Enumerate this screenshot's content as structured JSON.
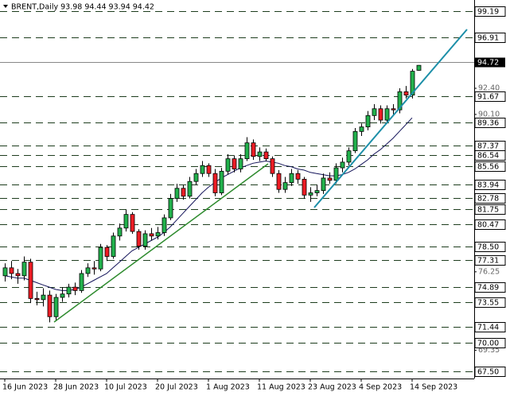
{
  "chart_data": {
    "type": "candlestick",
    "title": "BRENT,Daily  93.98 94.44 93.94 94.42",
    "categories": [
      "16 Jun 2023",
      null,
      null,
      null,
      null,
      null,
      null,
      null,
      "28 Jun 2023",
      null,
      null,
      null,
      null,
      null,
      null,
      null,
      "10 Jul 2023",
      null,
      null,
      null,
      null,
      null,
      null,
      null,
      "20 Jul 2023",
      null,
      null,
      null,
      null,
      null,
      null,
      null,
      "1 Aug 2023",
      null,
      null,
      null,
      null,
      null,
      null,
      null,
      "11 Aug 2023",
      null,
      null,
      null,
      null,
      null,
      null,
      null,
      "23 Aug 2023",
      null,
      null,
      null,
      null,
      null,
      null,
      null,
      "4 Sep 2023",
      null,
      null,
      null,
      null,
      null,
      null,
      null,
      "14 Sep 2023",
      null
    ],
    "open": [
      75.9,
      76.6,
      76.1,
      75.9,
      77.1,
      73.9,
      73.8,
      74.2,
      72.3,
      74.0,
      74.3,
      74.9,
      74.6,
      76.1,
      76.6,
      76.5,
      78.4,
      77.6,
      79.4,
      80.1,
      81.3,
      79.8,
      78.5,
      79.6,
      79.4,
      79.7,
      81.0,
      82.7,
      83.6,
      82.9,
      84.2,
      84.9,
      85.6,
      84.9,
      83.2,
      85.1,
      86.2,
      85.3,
      86.2,
      87.6,
      86.4,
      86.8,
      86.2,
      84.9,
      83.5,
      84.1,
      84.9,
      84.4,
      83.0,
      83.2,
      83.4,
      84.5,
      84.3,
      85.4,
      85.9,
      86.9,
      88.6,
      89.0,
      90.0,
      90.6,
      89.6,
      90.6,
      90.5,
      92.1,
      91.8,
      93.98
    ],
    "high": [
      77.0,
      77.2,
      76.5,
      77.6,
      77.4,
      74.5,
      74.8,
      74.6,
      74.3,
      74.9,
      75.2,
      75.3,
      76.4,
      77.0,
      77.2,
      78.7,
      78.6,
      79.7,
      80.5,
      81.7,
      81.5,
      80.0,
      79.9,
      80.1,
      80.2,
      81.3,
      83.1,
      84.0,
      83.9,
      84.6,
      85.3,
      86.0,
      85.8,
      85.3,
      85.4,
      86.6,
      86.5,
      86.6,
      88.1,
      87.9,
      87.2,
      87.1,
      86.4,
      85.2,
      84.6,
      85.3,
      85.2,
      84.6,
      83.7,
      83.9,
      84.9,
      85.0,
      85.8,
      86.3,
      87.2,
      88.9,
      89.3,
      90.4,
      91.0,
      90.9,
      90.9,
      91.0,
      92.4,
      92.6,
      94.1,
      94.44
    ],
    "low": [
      75.4,
      75.6,
      75.2,
      75.5,
      73.5,
      73.3,
      73.2,
      71.8,
      71.9,
      73.6,
      74.0,
      74.2,
      74.4,
      75.8,
      76.0,
      76.3,
      77.2,
      77.4,
      79.0,
      79.8,
      79.6,
      78.2,
      78.2,
      79.0,
      79.1,
      79.4,
      80.8,
      82.4,
      82.6,
      82.7,
      83.9,
      84.6,
      84.6,
      82.9,
      83.0,
      84.8,
      85.0,
      85.0,
      86.0,
      86.1,
      86.0,
      86.0,
      84.6,
      83.2,
      83.2,
      83.8,
      84.0,
      82.7,
      82.4,
      82.9,
      83.1,
      84.0,
      84.0,
      85.0,
      85.6,
      86.7,
      88.2,
      88.7,
      89.6,
      89.3,
      89.3,
      90.1,
      90.2,
      91.5,
      91.5,
      93.94
    ],
    "close": [
      76.6,
      76.1,
      75.9,
      77.1,
      73.9,
      73.8,
      74.2,
      72.3,
      74.0,
      74.3,
      74.9,
      74.6,
      76.1,
      76.6,
      76.5,
      78.4,
      77.6,
      79.4,
      80.1,
      81.3,
      79.8,
      78.5,
      79.6,
      79.4,
      79.7,
      81.0,
      82.7,
      83.6,
      82.9,
      84.2,
      84.9,
      85.6,
      84.9,
      83.2,
      85.1,
      86.2,
      85.3,
      86.2,
      87.6,
      86.4,
      86.8,
      86.2,
      84.9,
      83.5,
      84.1,
      84.9,
      84.4,
      83.0,
      83.2,
      83.4,
      84.5,
      84.3,
      85.4,
      85.9,
      86.9,
      88.6,
      89.0,
      90.0,
      90.6,
      89.6,
      90.6,
      90.5,
      92.1,
      91.8,
      93.9,
      94.42
    ],
    "up_color": "#22b14c",
    "down_color": "#ed1c24",
    "moving_average": {
      "color": "#14145a",
      "values": [
        75.9,
        75.8,
        75.7,
        75.7,
        75.5,
        75.3,
        75.1,
        74.9,
        74.7,
        74.6,
        74.6,
        74.7,
        74.9,
        75.2,
        75.5,
        75.8,
        76.1,
        76.6,
        77.1,
        77.6,
        78.1,
        78.4,
        78.7,
        79.0,
        79.3,
        79.7,
        80.2,
        80.8,
        81.4,
        82.0,
        82.6,
        83.2,
        83.7,
        84.1,
        84.5,
        84.8,
        85.1,
        85.4,
        85.6,
        85.8,
        85.9,
        86.0,
        85.9,
        85.8,
        85.6,
        85.5,
        85.3,
        85.2,
        85.0,
        84.9,
        84.8,
        84.7,
        84.7,
        84.8,
        85.0,
        85.3,
        85.7,
        86.1,
        86.6,
        87.0,
        87.5,
        88.0,
        88.6,
        89.2,
        89.8,
        null
      ]
    },
    "levels": [
      99.19,
      96.91,
      91.67,
      89.36,
      87.37,
      86.54,
      85.56,
      83.94,
      82.78,
      81.75,
      80.47,
      {
        "value": 78.5,
        "label": "78.50"
      },
      77.31,
      74.89,
      73.55,
      71.44,
      {
        "value": 70,
        "label": "70.00"
      },
      {
        "value": 67.5,
        "label": "67.50"
      }
    ],
    "price_line": 94.72,
    "ylim": [
      66.86,
      100.17
    ],
    "yticks": [
      {
        "value": 92.4,
        "label": "92.40"
      },
      {
        "value": 90.1,
        "label": "90.10"
      },
      76.25,
      69.35
    ]
  }
}
